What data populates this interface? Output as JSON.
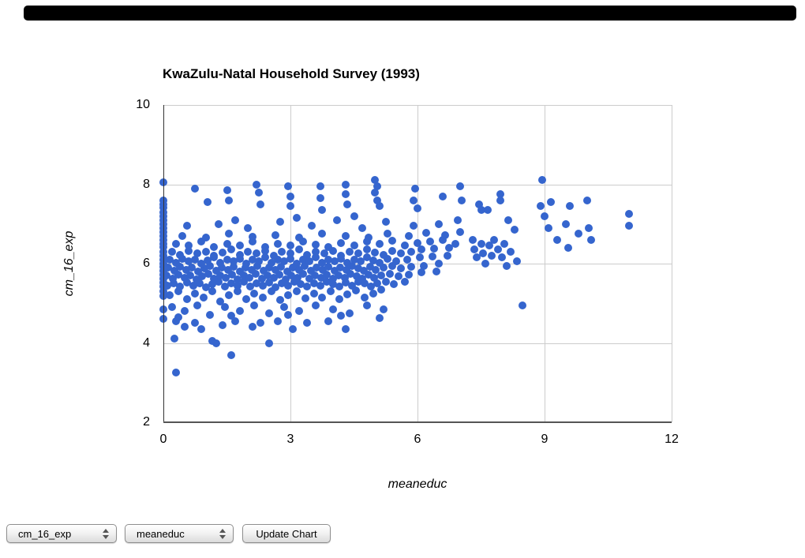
{
  "top_bar": {
    "color": "#000000"
  },
  "controls": {
    "y_select": {
      "value": "cm_16_exp"
    },
    "x_select": {
      "value": "meaneduc"
    },
    "update_button": {
      "label": "Update Chart"
    }
  },
  "chart_data": {
    "type": "scatter",
    "title": "KwaZulu-Natal Household Survey (1993)",
    "xlabel": "meaneduc",
    "ylabel": "cm_16_exp",
    "xlim": [
      0,
      12
    ],
    "ylim": [
      2,
      10
    ],
    "x_ticks": [
      0,
      3,
      6,
      9,
      12
    ],
    "y_ticks": [
      2,
      4,
      6,
      8,
      10
    ],
    "grid": true,
    "legend": "none",
    "point_color": "#3565CE",
    "points": [
      [
        0,
        8.05
      ],
      [
        0,
        7.6
      ],
      [
        0,
        7.5
      ],
      [
        0,
        7.42
      ],
      [
        0,
        7.3
      ],
      [
        0,
        7.2
      ],
      [
        0,
        7.1
      ],
      [
        0,
        7.0
      ],
      [
        0,
        6.9
      ],
      [
        0,
        6.8
      ],
      [
        0,
        6.7
      ],
      [
        0,
        6.6
      ],
      [
        0,
        6.5
      ],
      [
        0,
        6.42
      ],
      [
        0,
        6.3
      ],
      [
        0,
        6.2
      ],
      [
        0,
        6.1
      ],
      [
        0,
        6.0
      ],
      [
        0,
        5.92
      ],
      [
        0,
        5.82
      ],
      [
        0,
        5.72
      ],
      [
        0,
        5.62
      ],
      [
        0,
        5.52
      ],
      [
        0,
        5.42
      ],
      [
        0,
        5.3
      ],
      [
        0,
        5.18
      ],
      [
        0,
        4.85
      ],
      [
        0,
        4.6
      ],
      [
        0.3,
        3.25
      ],
      [
        1.6,
        3.7
      ],
      [
        0.26,
        4.1
      ],
      [
        1.15,
        4.05
      ],
      [
        1.25,
        4.0
      ],
      [
        2.5,
        4.0
      ],
      [
        3.05,
        4.35
      ],
      [
        2.1,
        4.4
      ],
      [
        0.3,
        4.55
      ],
      [
        0.5,
        4.4
      ],
      [
        0.75,
        4.5
      ],
      [
        0.9,
        4.35
      ],
      [
        1.4,
        4.45
      ],
      [
        1.7,
        4.55
      ],
      [
        2.3,
        4.5
      ],
      [
        2.7,
        4.55
      ],
      [
        3.4,
        4.5
      ],
      [
        3.9,
        4.55
      ],
      [
        4.3,
        4.35
      ],
      [
        5.1,
        4.62
      ],
      [
        8.48,
        4.95
      ],
      [
        0.75,
        7.9
      ],
      [
        1.05,
        7.55
      ],
      [
        1.5,
        7.85
      ],
      [
        1.55,
        7.6
      ],
      [
        2.2,
        8.0
      ],
      [
        2.25,
        7.8
      ],
      [
        2.3,
        7.5
      ],
      [
        2.95,
        7.95
      ],
      [
        3.0,
        7.7
      ],
      [
        3.0,
        7.45
      ],
      [
        3.7,
        7.95
      ],
      [
        3.7,
        7.65
      ],
      [
        3.75,
        7.35
      ],
      [
        4.3,
        8.0
      ],
      [
        4.3,
        7.75
      ],
      [
        4.35,
        7.5
      ],
      [
        5.0,
        8.1
      ],
      [
        5.05,
        7.95
      ],
      [
        5.0,
        7.8
      ],
      [
        5.05,
        7.6
      ],
      [
        5.1,
        7.45
      ],
      [
        5.95,
        7.9
      ],
      [
        5.9,
        7.6
      ],
      [
        6.0,
        7.4
      ],
      [
        6.6,
        7.7
      ],
      [
        7.0,
        7.95
      ],
      [
        7.05,
        7.6
      ],
      [
        7.45,
        7.5
      ],
      [
        7.5,
        7.35
      ],
      [
        7.95,
        7.75
      ],
      [
        7.95,
        7.6
      ],
      [
        8.95,
        8.1
      ],
      [
        9.15,
        7.55
      ],
      [
        8.9,
        7.45
      ],
      [
        9.6,
        7.45
      ],
      [
        10.0,
        7.6
      ],
      [
        11.0,
        7.25
      ],
      [
        11.0,
        6.95
      ],
      [
        9.5,
        7.0
      ],
      [
        9.0,
        7.2
      ],
      [
        10.05,
        6.9
      ],
      [
        9.1,
        6.9
      ],
      [
        9.3,
        6.6
      ],
      [
        9.55,
        6.4
      ],
      [
        9.8,
        6.75
      ],
      [
        10.1,
        6.6
      ],
      [
        8.3,
        6.85
      ],
      [
        8.15,
        7.1
      ],
      [
        7.65,
        7.35
      ],
      [
        7.3,
        6.6
      ],
      [
        7.35,
        6.35
      ],
      [
        7.4,
        6.15
      ],
      [
        7.5,
        6.5
      ],
      [
        7.55,
        6.25
      ],
      [
        7.6,
        6.0
      ],
      [
        7.7,
        6.45
      ],
      [
        7.75,
        6.2
      ],
      [
        7.8,
        6.6
      ],
      [
        7.9,
        6.35
      ],
      [
        8.0,
        6.15
      ],
      [
        8.05,
        6.5
      ],
      [
        8.1,
        5.95
      ],
      [
        8.2,
        6.3
      ],
      [
        8.35,
        6.05
      ],
      [
        0.1,
        5.45
      ],
      [
        0.25,
        5.5
      ],
      [
        0.4,
        5.42
      ],
      [
        0.55,
        5.52
      ],
      [
        0.7,
        5.45
      ],
      [
        0.85,
        5.5
      ],
      [
        1.0,
        5.4
      ],
      [
        1.15,
        5.48
      ],
      [
        1.3,
        5.55
      ],
      [
        1.45,
        5.42
      ],
      [
        1.6,
        5.5
      ],
      [
        1.75,
        5.45
      ],
      [
        1.9,
        5.55
      ],
      [
        2.05,
        5.42
      ],
      [
        2.2,
        5.5
      ],
      [
        2.35,
        5.45
      ],
      [
        2.5,
        5.52
      ],
      [
        2.65,
        5.4
      ],
      [
        2.8,
        5.5
      ],
      [
        2.95,
        5.45
      ],
      [
        3.1,
        5.55
      ],
      [
        3.25,
        5.48
      ],
      [
        3.4,
        5.42
      ],
      [
        3.55,
        5.5
      ],
      [
        3.7,
        5.45
      ],
      [
        3.85,
        5.55
      ],
      [
        4.0,
        5.48
      ],
      [
        4.15,
        5.42
      ],
      [
        4.3,
        5.52
      ],
      [
        4.45,
        5.45
      ],
      [
        4.6,
        5.55
      ],
      [
        4.75,
        5.5
      ],
      [
        4.9,
        5.42
      ],
      [
        5.05,
        5.5
      ],
      [
        5.25,
        5.55
      ],
      [
        5.45,
        5.48
      ],
      [
        5.7,
        5.55
      ],
      [
        0.08,
        5.7
      ],
      [
        0.22,
        5.62
      ],
      [
        0.36,
        5.72
      ],
      [
        0.5,
        5.65
      ],
      [
        0.64,
        5.7
      ],
      [
        0.78,
        5.6
      ],
      [
        0.92,
        5.68
      ],
      [
        1.06,
        5.75
      ],
      [
        1.2,
        5.62
      ],
      [
        1.34,
        5.7
      ],
      [
        1.48,
        5.65
      ],
      [
        1.62,
        5.72
      ],
      [
        1.76,
        5.6
      ],
      [
        1.9,
        5.7
      ],
      [
        2.04,
        5.65
      ],
      [
        2.18,
        5.75
      ],
      [
        2.32,
        5.62
      ],
      [
        2.46,
        5.7
      ],
      [
        2.6,
        5.65
      ],
      [
        2.74,
        5.72
      ],
      [
        2.88,
        5.6
      ],
      [
        3.02,
        5.7
      ],
      [
        3.16,
        5.65
      ],
      [
        3.3,
        5.75
      ],
      [
        3.44,
        5.62
      ],
      [
        3.58,
        5.7
      ],
      [
        3.72,
        5.65
      ],
      [
        3.86,
        5.72
      ],
      [
        4.0,
        5.62
      ],
      [
        4.14,
        5.7
      ],
      [
        4.28,
        5.65
      ],
      [
        4.42,
        5.75
      ],
      [
        4.56,
        5.68
      ],
      [
        4.7,
        5.62
      ],
      [
        4.84,
        5.72
      ],
      [
        4.98,
        5.65
      ],
      [
        5.15,
        5.7
      ],
      [
        5.35,
        5.75
      ],
      [
        5.55,
        5.68
      ],
      [
        5.8,
        5.72
      ],
      [
        6.1,
        5.78
      ],
      [
        6.45,
        5.8
      ],
      [
        0.12,
        5.9
      ],
      [
        0.26,
        5.82
      ],
      [
        0.4,
        5.92
      ],
      [
        0.54,
        5.85
      ],
      [
        0.68,
        5.9
      ],
      [
        0.82,
        5.8
      ],
      [
        0.96,
        5.88
      ],
      [
        1.1,
        5.95
      ],
      [
        1.24,
        5.82
      ],
      [
        1.38,
        5.9
      ],
      [
        1.52,
        5.85
      ],
      [
        1.66,
        5.92
      ],
      [
        1.8,
        5.8
      ],
      [
        1.94,
        5.9
      ],
      [
        2.08,
        5.85
      ],
      [
        2.22,
        5.95
      ],
      [
        2.36,
        5.82
      ],
      [
        2.5,
        5.9
      ],
      [
        2.64,
        5.85
      ],
      [
        2.78,
        5.92
      ],
      [
        2.92,
        5.8
      ],
      [
        3.06,
        5.9
      ],
      [
        3.2,
        5.85
      ],
      [
        3.34,
        5.95
      ],
      [
        3.48,
        5.82
      ],
      [
        3.62,
        5.9
      ],
      [
        3.76,
        5.85
      ],
      [
        3.9,
        5.92
      ],
      [
        4.04,
        5.82
      ],
      [
        4.18,
        5.9
      ],
      [
        4.32,
        5.85
      ],
      [
        4.46,
        5.95
      ],
      [
        4.6,
        5.88
      ],
      [
        4.74,
        5.82
      ],
      [
        4.88,
        5.92
      ],
      [
        5.02,
        5.85
      ],
      [
        5.2,
        5.9
      ],
      [
        5.4,
        5.95
      ],
      [
        5.6,
        5.88
      ],
      [
        5.85,
        5.92
      ],
      [
        6.15,
        5.95
      ],
      [
        6.5,
        6.0
      ],
      [
        0.15,
        6.1
      ],
      [
        0.3,
        6.02
      ],
      [
        0.45,
        6.12
      ],
      [
        0.6,
        6.05
      ],
      [
        0.75,
        6.1
      ],
      [
        0.9,
        6.0
      ],
      [
        1.05,
        6.08
      ],
      [
        1.2,
        6.15
      ],
      [
        1.35,
        6.02
      ],
      [
        1.5,
        6.1
      ],
      [
        1.65,
        6.05
      ],
      [
        1.8,
        6.12
      ],
      [
        1.95,
        6.0
      ],
      [
        2.1,
        6.1
      ],
      [
        2.25,
        6.05
      ],
      [
        2.4,
        6.15
      ],
      [
        2.55,
        6.02
      ],
      [
        2.7,
        6.1
      ],
      [
        2.85,
        6.05
      ],
      [
        3.0,
        6.12
      ],
      [
        3.15,
        6.0
      ],
      [
        3.3,
        6.1
      ],
      [
        3.45,
        6.05
      ],
      [
        3.6,
        6.15
      ],
      [
        3.75,
        6.02
      ],
      [
        3.9,
        6.1
      ],
      [
        4.05,
        6.05
      ],
      [
        4.2,
        6.12
      ],
      [
        4.35,
        6.02
      ],
      [
        4.5,
        6.1
      ],
      [
        4.65,
        6.05
      ],
      [
        4.8,
        6.15
      ],
      [
        4.95,
        6.08
      ],
      [
        5.1,
        6.02
      ],
      [
        5.3,
        6.12
      ],
      [
        5.5,
        6.05
      ],
      [
        5.75,
        6.1
      ],
      [
        6.05,
        6.15
      ],
      [
        6.35,
        6.18
      ],
      [
        6.7,
        6.2
      ],
      [
        0.2,
        6.3
      ],
      [
        0.4,
        6.22
      ],
      [
        0.6,
        6.32
      ],
      [
        0.8,
        6.25
      ],
      [
        1.0,
        6.3
      ],
      [
        1.2,
        6.2
      ],
      [
        1.4,
        6.28
      ],
      [
        1.6,
        6.35
      ],
      [
        1.8,
        6.22
      ],
      [
        2.0,
        6.3
      ],
      [
        2.2,
        6.25
      ],
      [
        2.4,
        6.32
      ],
      [
        2.6,
        6.2
      ],
      [
        2.8,
        6.3
      ],
      [
        3.0,
        6.25
      ],
      [
        3.2,
        6.35
      ],
      [
        3.4,
        6.22
      ],
      [
        3.6,
        6.3
      ],
      [
        3.8,
        6.25
      ],
      [
        4.0,
        6.32
      ],
      [
        4.2,
        6.2
      ],
      [
        4.4,
        6.3
      ],
      [
        4.6,
        6.25
      ],
      [
        4.8,
        6.35
      ],
      [
        5.0,
        6.28
      ],
      [
        5.2,
        6.22
      ],
      [
        5.4,
        6.32
      ],
      [
        5.6,
        6.25
      ],
      [
        5.85,
        6.3
      ],
      [
        6.1,
        6.35
      ],
      [
        6.4,
        6.38
      ],
      [
        6.75,
        6.4
      ],
      [
        0.3,
        6.5
      ],
      [
        0.6,
        6.45
      ],
      [
        0.9,
        6.55
      ],
      [
        1.2,
        6.42
      ],
      [
        1.5,
        6.5
      ],
      [
        1.8,
        6.45
      ],
      [
        2.1,
        6.55
      ],
      [
        2.4,
        6.42
      ],
      [
        2.7,
        6.5
      ],
      [
        3.0,
        6.45
      ],
      [
        3.3,
        6.55
      ],
      [
        3.6,
        6.48
      ],
      [
        3.9,
        6.42
      ],
      [
        4.2,
        6.52
      ],
      [
        4.5,
        6.45
      ],
      [
        4.8,
        6.55
      ],
      [
        5.1,
        6.5
      ],
      [
        5.4,
        6.58
      ],
      [
        5.7,
        6.45
      ],
      [
        6.0,
        6.52
      ],
      [
        6.3,
        6.55
      ],
      [
        6.6,
        6.6
      ],
      [
        6.9,
        6.5
      ],
      [
        0.45,
        6.7
      ],
      [
        1.0,
        6.65
      ],
      [
        1.55,
        6.75
      ],
      [
        2.1,
        6.68
      ],
      [
        2.65,
        6.72
      ],
      [
        3.2,
        6.65
      ],
      [
        3.75,
        6.75
      ],
      [
        4.3,
        6.7
      ],
      [
        4.85,
        6.65
      ],
      [
        5.3,
        6.75
      ],
      [
        5.8,
        6.7
      ],
      [
        6.2,
        6.78
      ],
      [
        6.65,
        6.72
      ],
      [
        7.0,
        6.8
      ],
      [
        0.55,
        6.95
      ],
      [
        1.3,
        7.0
      ],
      [
        2.0,
        6.9
      ],
      [
        2.75,
        7.05
      ],
      [
        3.5,
        6.95
      ],
      [
        4.1,
        7.1
      ],
      [
        4.7,
        6.9
      ],
      [
        5.25,
        7.05
      ],
      [
        5.9,
        6.95
      ],
      [
        6.5,
        7.0
      ],
      [
        6.95,
        7.1
      ],
      [
        1.7,
        7.1
      ],
      [
        3.15,
        7.15
      ],
      [
        4.5,
        7.2
      ],
      [
        0.2,
        4.9
      ],
      [
        0.5,
        4.8
      ],
      [
        0.8,
        4.95
      ],
      [
        1.1,
        4.7
      ],
      [
        1.45,
        4.9
      ],
      [
        1.8,
        4.8
      ],
      [
        2.15,
        4.95
      ],
      [
        2.5,
        4.75
      ],
      [
        2.85,
        4.9
      ],
      [
        3.2,
        4.8
      ],
      [
        3.6,
        4.95
      ],
      [
        4.0,
        4.85
      ],
      [
        4.4,
        4.75
      ],
      [
        4.8,
        4.95
      ],
      [
        5.2,
        4.85
      ],
      [
        0.35,
        4.65
      ],
      [
        1.6,
        4.68
      ],
      [
        2.95,
        4.7
      ],
      [
        4.2,
        4.68
      ],
      [
        0.15,
        5.2
      ],
      [
        0.35,
        5.3
      ],
      [
        0.55,
        5.1
      ],
      [
        0.75,
        5.25
      ],
      [
        0.95,
        5.15
      ],
      [
        1.15,
        5.3
      ],
      [
        1.35,
        5.05
      ],
      [
        1.55,
        5.2
      ],
      [
        1.75,
        5.3
      ],
      [
        1.95,
        5.1
      ],
      [
        2.15,
        5.25
      ],
      [
        2.35,
        5.15
      ],
      [
        2.55,
        5.3
      ],
      [
        2.75,
        5.08
      ],
      [
        2.95,
        5.2
      ],
      [
        3.15,
        5.3
      ],
      [
        3.35,
        5.12
      ],
      [
        3.55,
        5.25
      ],
      [
        3.75,
        5.15
      ],
      [
        3.95,
        5.3
      ],
      [
        4.15,
        5.1
      ],
      [
        4.35,
        5.22
      ],
      [
        4.55,
        5.32
      ],
      [
        4.75,
        5.15
      ],
      [
        4.95,
        5.25
      ],
      [
        5.15,
        5.35
      ]
    ]
  }
}
